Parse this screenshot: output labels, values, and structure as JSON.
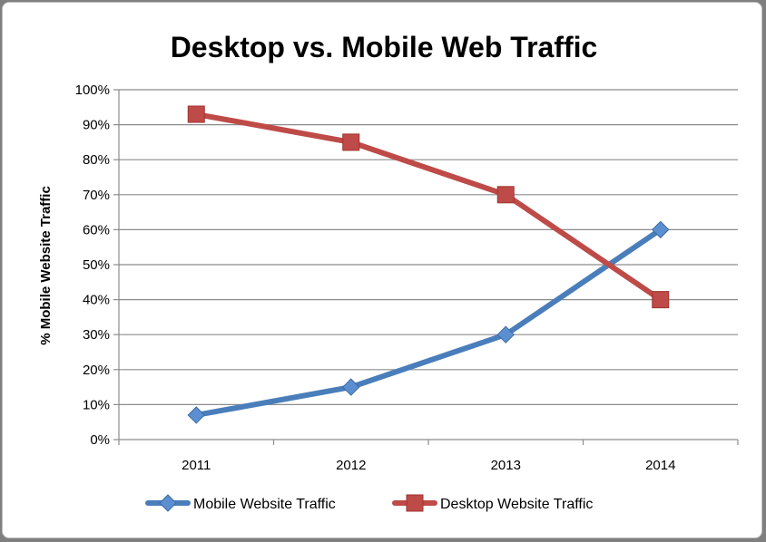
{
  "chart_data": {
    "type": "line",
    "title": "Desktop vs. Mobile Web Traffic",
    "xlabel": "",
    "ylabel": "% Mobile Website Traffic",
    "categories": [
      "2011",
      "2012",
      "2013",
      "2014"
    ],
    "ylim": [
      0,
      100
    ],
    "yticks": [
      "0%",
      "10%",
      "20%",
      "30%",
      "40%",
      "50%",
      "60%",
      "70%",
      "80%",
      "90%",
      "100%"
    ],
    "grid": true,
    "legend_position": "bottom",
    "series": [
      {
        "name": "Mobile Website Traffic",
        "values": [
          7,
          15,
          30,
          60
        ],
        "color": "#4a7ebb",
        "marker": "diamond"
      },
      {
        "name": "Desktop Website Traffic",
        "values": [
          93,
          85,
          70,
          40
        ],
        "color": "#be4b48",
        "marker": "square"
      }
    ]
  }
}
